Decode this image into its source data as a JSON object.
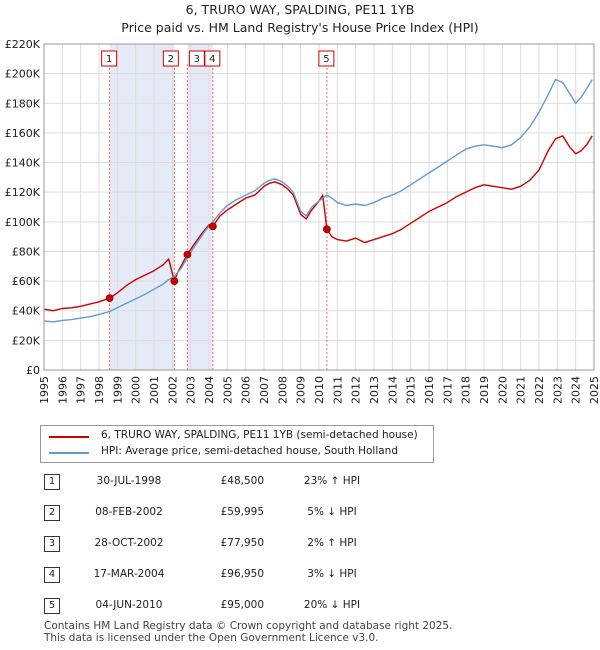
{
  "header": {
    "title": "6, TRURO WAY, SPALDING, PE11 1YB",
    "subtitle": "Price paid vs. HM Land Registry's House Price Index (HPI)"
  },
  "chart_data": {
    "type": "line",
    "title": "6, TRURO WAY, SPALDING, PE11 1YB",
    "subtitle": "Price paid vs. HM Land Registry's House Price Index (HPI)",
    "xlim": [
      1995,
      2025
    ],
    "ylim": [
      0,
      220000
    ],
    "x_ticks": [
      "1995",
      "1996",
      "1997",
      "1998",
      "1999",
      "2000",
      "2001",
      "2002",
      "2003",
      "2004",
      "2005",
      "2006",
      "2007",
      "2008",
      "2009",
      "2010",
      "2011",
      "2012",
      "2013",
      "2014",
      "2015",
      "2016",
      "2017",
      "2018",
      "2019",
      "2020",
      "2021",
      "2022",
      "2023",
      "2024",
      "2025"
    ],
    "y_ticks": [
      "£0",
      "£20K",
      "£40K",
      "£60K",
      "£80K",
      "£100K",
      "£120K",
      "£140K",
      "£160K",
      "£180K",
      "£200K",
      "£220K"
    ],
    "grid": true,
    "legend_position": "below",
    "colors": {
      "price": "#cc0000",
      "hpi": "#6699cc",
      "shade": "#dde6f5",
      "marker_line": "#ff6666"
    },
    "series": [
      {
        "name": "6, TRURO WAY, SPALDING, PE11 1YB (semi-detached house)",
        "key": "price",
        "x": [
          1995.0,
          1995.5,
          1996.0,
          1996.5,
          1997.0,
          1997.5,
          1998.0,
          1998.58,
          1999.0,
          1999.5,
          2000.0,
          2000.5,
          2001.0,
          2001.5,
          2001.8,
          2002.11,
          2002.3,
          2002.6,
          2002.82,
          2003.2,
          2003.6,
          2004.0,
          2004.21,
          2004.6,
          2005.0,
          2005.5,
          2006.0,
          2006.5,
          2007.0,
          2007.3,
          2007.6,
          2008.0,
          2008.3,
          2008.6,
          2009.0,
          2009.3,
          2009.6,
          2010.0,
          2010.2,
          2010.43,
          2010.7,
          2011.0,
          2011.5,
          2012.0,
          2012.5,
          2013.0,
          2013.5,
          2014.0,
          2014.5,
          2015.0,
          2015.5,
          2016.0,
          2016.5,
          2017.0,
          2017.5,
          2018.0,
          2018.5,
          2019.0,
          2019.5,
          2020.0,
          2020.5,
          2021.0,
          2021.5,
          2022.0,
          2022.5,
          2022.9,
          2023.3,
          2023.7,
          2024.0,
          2024.3,
          2024.6,
          2024.9
        ],
        "y": [
          41000,
          40000,
          41500,
          42000,
          43000,
          44500,
          46000,
          48500,
          52000,
          57000,
          61000,
          64000,
          67000,
          71000,
          75000,
          59995,
          66000,
          73000,
          77950,
          85000,
          92000,
          98000,
          96950,
          104000,
          108000,
          112000,
          116000,
          118000,
          124000,
          126000,
          127000,
          125000,
          122000,
          118000,
          105000,
          102000,
          108000,
          114000,
          118000,
          95000,
          90000,
          88000,
          87000,
          89000,
          86000,
          88000,
          90000,
          92000,
          95000,
          99000,
          103000,
          107000,
          110000,
          113000,
          117000,
          120000,
          123000,
          125000,
          124000,
          123000,
          122000,
          124000,
          128000,
          135000,
          148000,
          156000,
          158000,
          150000,
          146000,
          148000,
          152000,
          158000
        ]
      },
      {
        "name": "HPI: Average price, semi-detached house, South Holland",
        "key": "hpi",
        "x": [
          1995.0,
          1995.5,
          1996.0,
          1996.5,
          1997.0,
          1997.5,
          1998.0,
          1998.58,
          1999.0,
          1999.5,
          2000.0,
          2000.5,
          2001.0,
          2001.5,
          2001.8,
          2002.11,
          2002.5,
          2002.82,
          2003.3,
          2003.8,
          2004.21,
          2004.6,
          2005.0,
          2005.5,
          2006.0,
          2006.5,
          2007.0,
          2007.3,
          2007.6,
          2008.0,
          2008.3,
          2008.6,
          2009.0,
          2009.3,
          2009.6,
          2010.0,
          2010.43,
          2010.7,
          2011.0,
          2011.5,
          2012.0,
          2012.5,
          2013.0,
          2013.5,
          2014.0,
          2014.5,
          2015.0,
          2015.5,
          2016.0,
          2016.5,
          2017.0,
          2017.5,
          2018.0,
          2018.5,
          2019.0,
          2019.5,
          2020.0,
          2020.5,
          2021.0,
          2021.5,
          2022.0,
          2022.5,
          2022.9,
          2023.3,
          2023.7,
          2024.0,
          2024.3,
          2024.6,
          2024.9
        ],
        "y": [
          33000,
          32500,
          33500,
          34000,
          35000,
          36000,
          37500,
          39500,
          42000,
          45000,
          48000,
          51000,
          54500,
          58000,
          61000,
          63000,
          69000,
          76000,
          85000,
          94000,
          100000,
          106000,
          111000,
          115000,
          118000,
          121000,
          126000,
          128000,
          129000,
          127000,
          124000,
          120000,
          107000,
          104000,
          110000,
          114000,
          118000,
          116000,
          113000,
          111000,
          112000,
          111000,
          113000,
          116000,
          118000,
          121000,
          125000,
          129000,
          133000,
          137000,
          141000,
          145000,
          149000,
          151000,
          152000,
          151000,
          150000,
          152000,
          157000,
          164000,
          174000,
          186000,
          196000,
          194000,
          186000,
          180000,
          184000,
          190000,
          196000
        ]
      }
    ],
    "sales": [
      {
        "num": "1",
        "year": 1998.58,
        "price": 48500
      },
      {
        "num": "2",
        "year": 2002.11,
        "price": 59995
      },
      {
        "num": "3",
        "year": 2002.82,
        "price": 77950
      },
      {
        "num": "4",
        "year": 2004.21,
        "price": 96950
      },
      {
        "num": "5",
        "year": 2010.43,
        "price": 95000
      }
    ],
    "shaded_ranges": [
      [
        1998.58,
        2002.11
      ],
      [
        2002.82,
        2004.21
      ],
      [
        2010.43,
        2010.43
      ]
    ]
  },
  "legend": {
    "price_label": "6, TRURO WAY, SPALDING, PE11 1YB (semi-detached house)",
    "hpi_label": "HPI: Average price, semi-detached house, South Holland"
  },
  "sales_table": [
    {
      "num": "1",
      "date": "30-JUL-1998",
      "price": "£48,500",
      "hpi": "23% ↑ HPI"
    },
    {
      "num": "2",
      "date": "08-FEB-2002",
      "price": "£59,995",
      "hpi": "5% ↓ HPI"
    },
    {
      "num": "3",
      "date": "28-OCT-2002",
      "price": "£77,950",
      "hpi": "2% ↑ HPI"
    },
    {
      "num": "4",
      "date": "17-MAR-2004",
      "price": "£96,950",
      "hpi": "3% ↓ HPI"
    },
    {
      "num": "5",
      "date": "04-JUN-2010",
      "price": "£95,000",
      "hpi": "20% ↓ HPI"
    }
  ],
  "footer": {
    "line1": "Contains HM Land Registry data © Crown copyright and database right 2025.",
    "line2": "This data is licensed under the Open Government Licence v3.0."
  }
}
